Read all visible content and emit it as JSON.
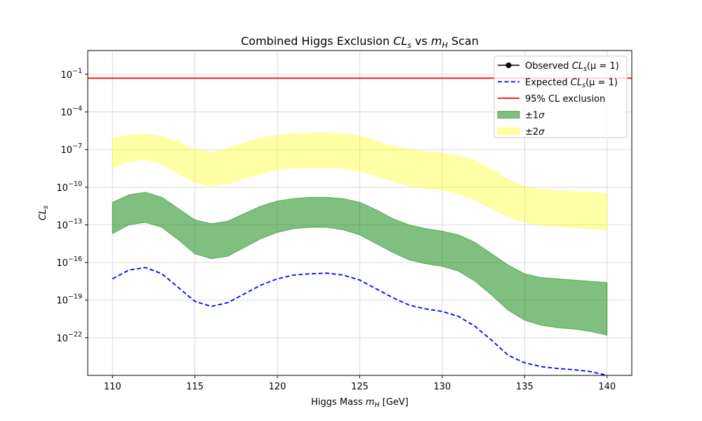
{
  "chart_data": {
    "type": "area",
    "title": "Combined Higgs Exclusion CL_s vs m_H Scan",
    "title_parts": {
      "pre": "Combined Higgs Exclusion ",
      "cl": "CL",
      "cl_sub": "s",
      "mid": " vs ",
      "m": "m",
      "m_sub": "H",
      "post": " Scan"
    },
    "xlabel": "Higgs Mass m_H [GeV]",
    "xlabel_parts": {
      "pre": "Higgs Mass ",
      "m": "m",
      "m_sub": "H",
      "post": " [GeV]"
    },
    "ylabel": "CL_s",
    "ylabel_parts": {
      "cl": "CL",
      "cl_sub": "s"
    },
    "xlim": [
      108.5,
      141.5
    ],
    "ylim_log10": [
      -25,
      0.9
    ],
    "yscale": "log",
    "grid": true,
    "legend_position": "top-right",
    "x_ticks": [
      110,
      115,
      120,
      125,
      130,
      135,
      140
    ],
    "y_tick_exponents": [
      -22,
      -19,
      -16,
      -13,
      -10,
      -7,
      -4,
      -1
    ],
    "x": [
      110,
      111,
      112,
      113,
      114,
      115,
      116,
      117,
      118,
      119,
      120,
      121,
      122,
      123,
      124,
      125,
      126,
      127,
      128,
      129,
      130,
      131,
      132,
      133,
      134,
      135,
      136,
      137,
      138,
      139,
      140
    ],
    "series": [
      {
        "name": "Observed CL_s(μ = 1)",
        "kind": "line-marker",
        "color": "#000000",
        "values_log10": []
      },
      {
        "name": "Expected CL_s(μ = 1)",
        "kind": "dashed-line",
        "color": "#0000ff",
        "values_log10": [
          -17.3,
          -16.6,
          -16.4,
          -16.9,
          -18.0,
          -19.1,
          -19.5,
          -19.2,
          -18.5,
          -17.8,
          -17.3,
          -17.0,
          -16.9,
          -16.85,
          -17.0,
          -17.4,
          -18.1,
          -18.8,
          -19.4,
          -19.7,
          -19.9,
          -20.3,
          -21.1,
          -22.2,
          -23.4,
          -24.0,
          -24.3,
          -24.45,
          -24.55,
          -24.7,
          -25.0
        ],
        "label_parts": {
          "pre": "Expected ",
          "cl": "CL",
          "cl_sub": "s",
          "post": "(μ = 1)"
        }
      },
      {
        "name": "95% CL exclusion",
        "kind": "hline",
        "color": "#ff0000",
        "value": 0.05
      },
      {
        "name": "±1σ",
        "kind": "band",
        "color": "#008000",
        "opacity": 0.5,
        "lower_log10": [
          -13.7,
          -13.0,
          -12.8,
          -13.2,
          -14.2,
          -15.3,
          -15.7,
          -15.5,
          -14.8,
          -14.1,
          -13.6,
          -13.3,
          -13.2,
          -13.2,
          -13.4,
          -13.8,
          -14.5,
          -15.2,
          -15.8,
          -16.1,
          -16.3,
          -16.7,
          -17.5,
          -18.6,
          -19.8,
          -20.6,
          -21.0,
          -21.2,
          -21.3,
          -21.5,
          -21.8
        ],
        "upper_log10": [
          -11.2,
          -10.6,
          -10.4,
          -10.8,
          -11.7,
          -12.6,
          -12.9,
          -12.7,
          -12.1,
          -11.5,
          -11.1,
          -10.9,
          -10.8,
          -10.8,
          -10.9,
          -11.2,
          -11.8,
          -12.5,
          -13.0,
          -13.3,
          -13.5,
          -13.8,
          -14.4,
          -15.3,
          -16.2,
          -16.9,
          -17.2,
          -17.3,
          -17.4,
          -17.5,
          -17.6
        ]
      },
      {
        "name": "±2σ",
        "kind": "band",
        "color": "#ffff00",
        "opacity": 0.35,
        "lower_log10": [
          -8.5,
          -7.9,
          -7.8,
          -8.1,
          -8.9,
          -9.6,
          -9.9,
          -9.7,
          -9.3,
          -8.9,
          -8.6,
          -8.45,
          -8.4,
          -8.4,
          -8.5,
          -8.7,
          -9.1,
          -9.5,
          -9.9,
          -10.1,
          -10.2,
          -10.5,
          -11.0,
          -11.7,
          -12.3,
          -12.8,
          -13.0,
          -13.1,
          -13.2,
          -13.3,
          -13.4
        ],
        "upper_log10": [
          -6.1,
          -5.85,
          -5.75,
          -5.95,
          -6.4,
          -7.0,
          -7.2,
          -6.9,
          -6.5,
          -6.1,
          -5.85,
          -5.75,
          -5.7,
          -5.7,
          -5.75,
          -5.95,
          -6.3,
          -6.7,
          -7.0,
          -7.2,
          -7.3,
          -7.5,
          -7.9,
          -8.6,
          -9.4,
          -10.0,
          -10.2,
          -10.3,
          -10.35,
          -10.4,
          -10.5
        ]
      }
    ],
    "legend": [
      {
        "label_pre": "Observed ",
        "label_cl": "CL",
        "label_sub": "s",
        "label_post": "(μ = 1)",
        "kind": "line-marker",
        "color": "#000000"
      },
      {
        "label_pre": "Expected ",
        "label_cl": "CL",
        "label_sub": "s",
        "label_post": "(μ = 1)",
        "kind": "dashed-line",
        "color": "#0000ff"
      },
      {
        "label_pre": "95% CL exclusion",
        "label_cl": "",
        "label_sub": "",
        "label_post": "",
        "kind": "line",
        "color": "#ff0000"
      },
      {
        "label_pre": "±1",
        "label_cl": "σ",
        "label_sub": "",
        "label_post": "",
        "kind": "patch",
        "color": "#008000",
        "opacity": 0.5,
        "italic_cl": true
      },
      {
        "label_pre": "±2",
        "label_cl": "σ",
        "label_sub": "",
        "label_post": "",
        "kind": "patch",
        "color": "#ffff00",
        "opacity": 0.35,
        "italic_cl": true
      }
    ]
  }
}
